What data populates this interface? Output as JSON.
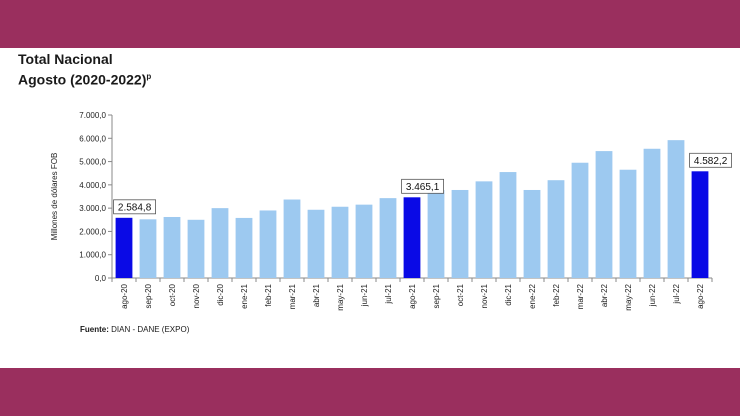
{
  "header": {
    "title_line1": "Total Nacional",
    "title_line2": "Agosto (2020-2022)",
    "title_sup": "p"
  },
  "source": {
    "label": "Fuente:",
    "text": "DIAN  - DANE (EXPO)"
  },
  "colors": {
    "frame": "#9a2f5e",
    "bar_regular": "#9dc9f0",
    "bar_highlight": "#0a0ae6"
  },
  "chart_data": {
    "type": "bar",
    "title": "Total Nacional Agosto (2020-2022)",
    "ylabel": "Millones de dólares FOB",
    "xlabel": "",
    "ylim": [
      0,
      7000
    ],
    "yticks": [
      "0,0",
      "1.000,0",
      "2.000,0",
      "3.000,0",
      "4.000,0",
      "5.000,0",
      "6.000,0",
      "7.000,0"
    ],
    "categories": [
      "ago-20",
      "sep-20",
      "oct-20",
      "nov-20",
      "dic-20",
      "ene-21",
      "feb-21",
      "mar-21",
      "abr-21",
      "may-21",
      "jun-21",
      "jul-21",
      "ago-21",
      "sep-21",
      "oct-21",
      "nov-21",
      "dic-21",
      "ene-22",
      "feb-22",
      "mar-22",
      "abr-22",
      "may-22",
      "jun-22",
      "jul-22",
      "ago-22"
    ],
    "values": [
      2584.8,
      2520,
      2620,
      2500,
      3000,
      2580,
      2900,
      3370,
      2930,
      3060,
      3150,
      3430,
      3465.1,
      3780,
      3780,
      4150,
      4550,
      3780,
      4200,
      4950,
      5450,
      4650,
      5550,
      5920,
      4582.2
    ],
    "highlighted": [
      "ago-20",
      "ago-21",
      "ago-22"
    ],
    "data_labels": [
      {
        "category": "ago-20",
        "text": "2.584,8"
      },
      {
        "category": "ago-21",
        "text": "3.465,1"
      },
      {
        "category": "ago-22",
        "text": "4.582,2"
      }
    ]
  }
}
